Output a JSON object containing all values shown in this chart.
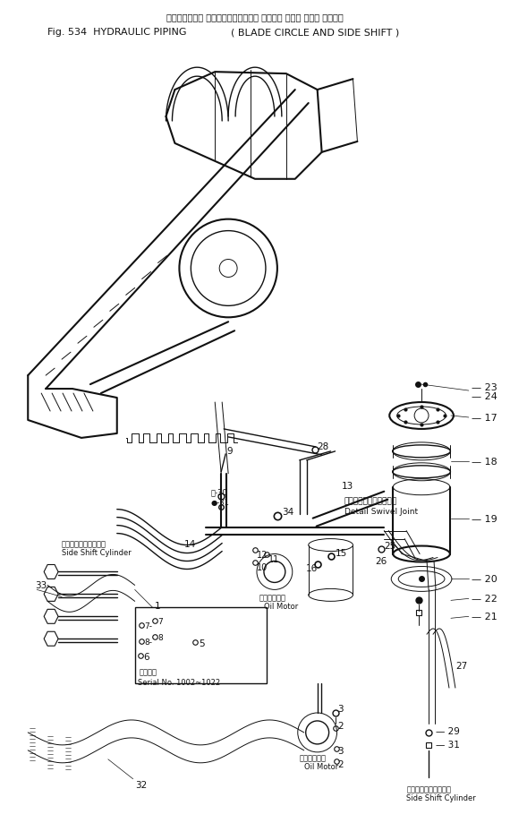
{
  "title_jp": "ハイドロリック パイピング（ブレード サークル および サイド シフト）",
  "title_en1": "Fig. 534  HYDRAULIC PIPING",
  "title_en2": "BLADE CIRCLE AND SIDE SHIFT",
  "bg": "#ffffff",
  "fg": "#111111",
  "ann_left_jp": "サイドシフトシリンダ",
  "ann_left_en": "Side Shift Cylinder",
  "ann_swivel_jp": "スイベルジョイント部詳",
  "ann_swivel_en": "Detail Swivel Joint",
  "ann_motor1_jp": "オイルモータ",
  "ann_motor1_en": "Oil Motor",
  "ann_motor2_jp": "オイルモータ",
  "ann_motor2_en": "Oil Motor",
  "ann_serial_jp": "備用番号",
  "ann_serial_en": "Serial No. 1002~1022",
  "ann_right_jp": "サイドシフトシリンダ",
  "ann_right_en": "Side Shift Cylinder"
}
